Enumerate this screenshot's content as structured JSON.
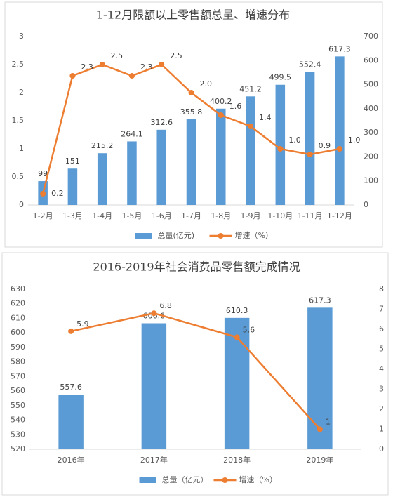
{
  "chart_data": [
    {
      "type": "bar-line",
      "title": "1-12月限额以上零售额总量、增速分布",
      "categories": [
        "1-2月",
        "1-3月",
        "1-4月",
        "1-5月",
        "1-6月",
        "1-7月",
        "1-8月",
        "1-9月",
        "1-10月",
        "1-11月",
        "1-12月"
      ],
      "series": [
        {
          "name": "总量(亿元)",
          "type": "bar",
          "axis": "y2",
          "color": "#5b9bd5",
          "values": [
            99,
            151,
            215.2,
            264.1,
            312.6,
            355.8,
            400.2,
            451.2,
            499.5,
            552.4,
            617.3
          ]
        },
        {
          "name": "增速（%）",
          "type": "line",
          "color": "#ed7d31",
          "values": [
            0.2,
            2.3,
            2.5,
            2.3,
            2.5,
            2.0,
            1.6,
            1.4,
            1.0,
            0.9,
            1.0
          ],
          "value_labels": [
            "0.2",
            "2.3",
            "2.5",
            "2.3",
            "2.5",
            "2.0",
            "1.6",
            "1.4",
            "1.0",
            "0.9",
            "1.0"
          ]
        }
      ],
      "ylim": [
        0,
        3
      ],
      "yticks": [
        0,
        0.5,
        1,
        1.5,
        2,
        2.5,
        3
      ],
      "y2lim": [
        0,
        700
      ],
      "y2ticks": [
        0,
        100,
        200,
        300,
        400,
        500,
        600,
        700
      ],
      "grid": false
    },
    {
      "type": "bar-line",
      "title": "2016-2019年社会消费品零售额完成情况",
      "categories": [
        "2016年",
        "2017年",
        "2018年",
        "2019年"
      ],
      "series": [
        {
          "name": "总量（亿元）",
          "type": "bar",
          "color": "#5b9bd5",
          "values": [
            557.6,
            606.6,
            610.3,
            617.3
          ]
        },
        {
          "name": "增速（%）",
          "type": "line",
          "axis": "y2",
          "color": "#ed7d31",
          "values": [
            5.9,
            6.8,
            5.6,
            1
          ]
        }
      ],
      "ylim": [
        520,
        630
      ],
      "yticks": [
        520,
        530,
        540,
        550,
        560,
        570,
        580,
        590,
        600,
        610,
        620,
        630
      ],
      "y2lim": [
        0,
        8
      ],
      "y2ticks": [
        0,
        1,
        2,
        3,
        4,
        5,
        6,
        7,
        8
      ],
      "grid": false
    }
  ]
}
